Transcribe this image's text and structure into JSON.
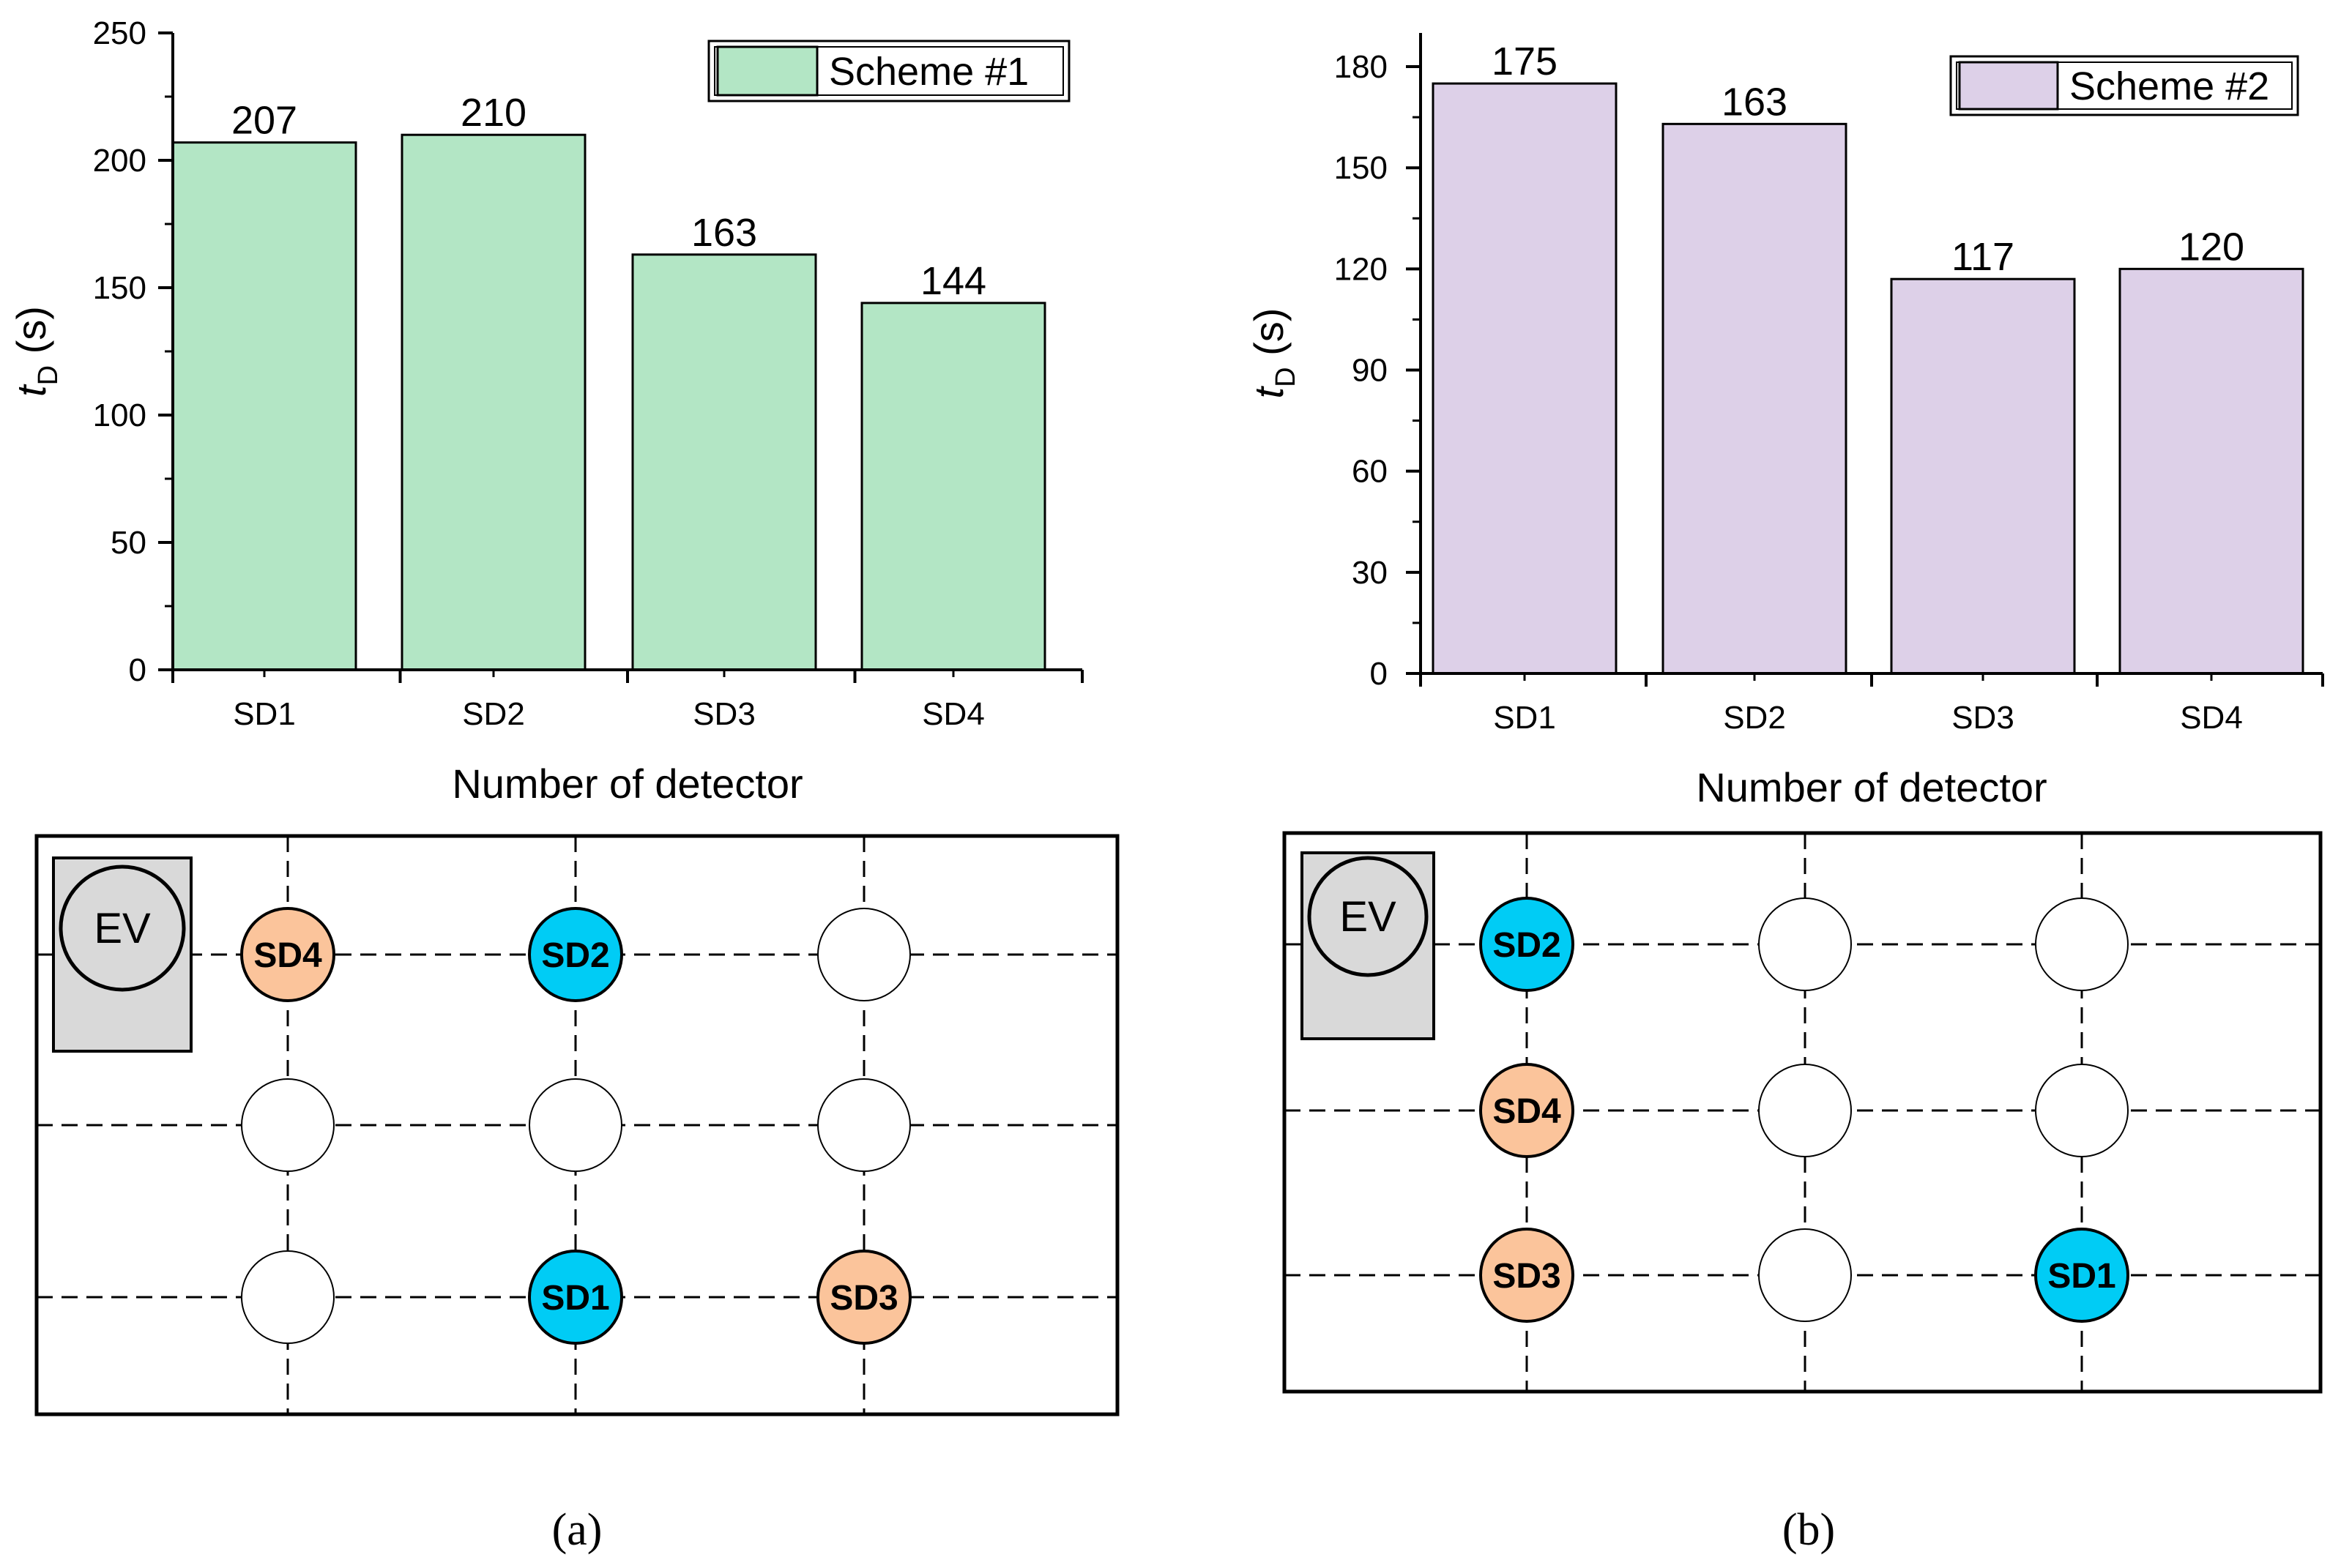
{
  "chart_data": [
    {
      "type": "bar",
      "panel": "a",
      "title": "",
      "categories": [
        "SD1",
        "SD2",
        "SD3",
        "SD4"
      ],
      "values": [
        207,
        210,
        163,
        144
      ],
      "value_labels": [
        "207",
        "210",
        "163",
        "144"
      ],
      "ylim": [
        0,
        250
      ],
      "yticks": [
        0,
        50,
        100,
        150,
        200,
        250
      ],
      "ytick_labels": [
        "0",
        "50",
        "100",
        "150",
        "200",
        "250"
      ],
      "ylabel_main": "t",
      "ylabel_sub": "D",
      "ylabel_unit": " (s)",
      "xlabel": "Number of detector",
      "legend": "Scheme #1",
      "legend_position": "top-right",
      "bar_color": "#b3e6c5"
    },
    {
      "type": "bar",
      "panel": "b",
      "title": "",
      "categories": [
        "SD1",
        "SD2",
        "SD3",
        "SD4"
      ],
      "values": [
        175,
        163,
        117,
        120
      ],
      "value_labels": [
        "175",
        "163",
        "117",
        "120"
      ],
      "ylim": [
        0,
        190
      ],
      "yticks": [
        0,
        30,
        60,
        90,
        120,
        150,
        180
      ],
      "ytick_labels": [
        "0",
        "30",
        "60",
        "90",
        "120",
        "150",
        "180"
      ],
      "ylabel_main": "t",
      "ylabel_sub": "D",
      "ylabel_unit": " (s)",
      "xlabel": "Number of detector",
      "legend": "Scheme #2",
      "legend_position": "top-right",
      "bar_color": "#ddd0e8"
    }
  ],
  "layouts": [
    {
      "panel": "a",
      "caption": "(a)",
      "ev_label": "EV",
      "grid_rows": 3,
      "grid_cols": 3,
      "detectors": [
        {
          "row": 0,
          "col": 0,
          "label": "SD4",
          "kind": "orange"
        },
        {
          "row": 0,
          "col": 1,
          "label": "SD2",
          "kind": "blue"
        },
        {
          "row": 0,
          "col": 2,
          "label": "",
          "kind": "empty"
        },
        {
          "row": 1,
          "col": 0,
          "label": "",
          "kind": "empty"
        },
        {
          "row": 1,
          "col": 1,
          "label": "",
          "kind": "empty"
        },
        {
          "row": 1,
          "col": 2,
          "label": "",
          "kind": "empty"
        },
        {
          "row": 2,
          "col": 0,
          "label": "",
          "kind": "empty"
        },
        {
          "row": 2,
          "col": 1,
          "label": "SD1",
          "kind": "blue"
        },
        {
          "row": 2,
          "col": 2,
          "label": "SD3",
          "kind": "orange"
        }
      ]
    },
    {
      "panel": "b",
      "caption": "(b)",
      "ev_label": "EV",
      "grid_rows": 3,
      "grid_cols": 3,
      "detectors": [
        {
          "row": 0,
          "col": 0,
          "label": "SD2",
          "kind": "blue"
        },
        {
          "row": 0,
          "col": 1,
          "label": "",
          "kind": "empty"
        },
        {
          "row": 0,
          "col": 2,
          "label": "",
          "kind": "empty"
        },
        {
          "row": 1,
          "col": 0,
          "label": "SD4",
          "kind": "orange"
        },
        {
          "row": 1,
          "col": 1,
          "label": "",
          "kind": "empty"
        },
        {
          "row": 1,
          "col": 2,
          "label": "",
          "kind": "empty"
        },
        {
          "row": 2,
          "col": 0,
          "label": "SD3",
          "kind": "orange"
        },
        {
          "row": 2,
          "col": 1,
          "label": "",
          "kind": "empty"
        },
        {
          "row": 2,
          "col": 2,
          "label": "SD1",
          "kind": "blue"
        }
      ]
    }
  ],
  "colors": {
    "blue": "#00ccf5",
    "orange": "#fbc49b",
    "empty": "#ffffff",
    "ev_box": "#d9d9d9"
  }
}
